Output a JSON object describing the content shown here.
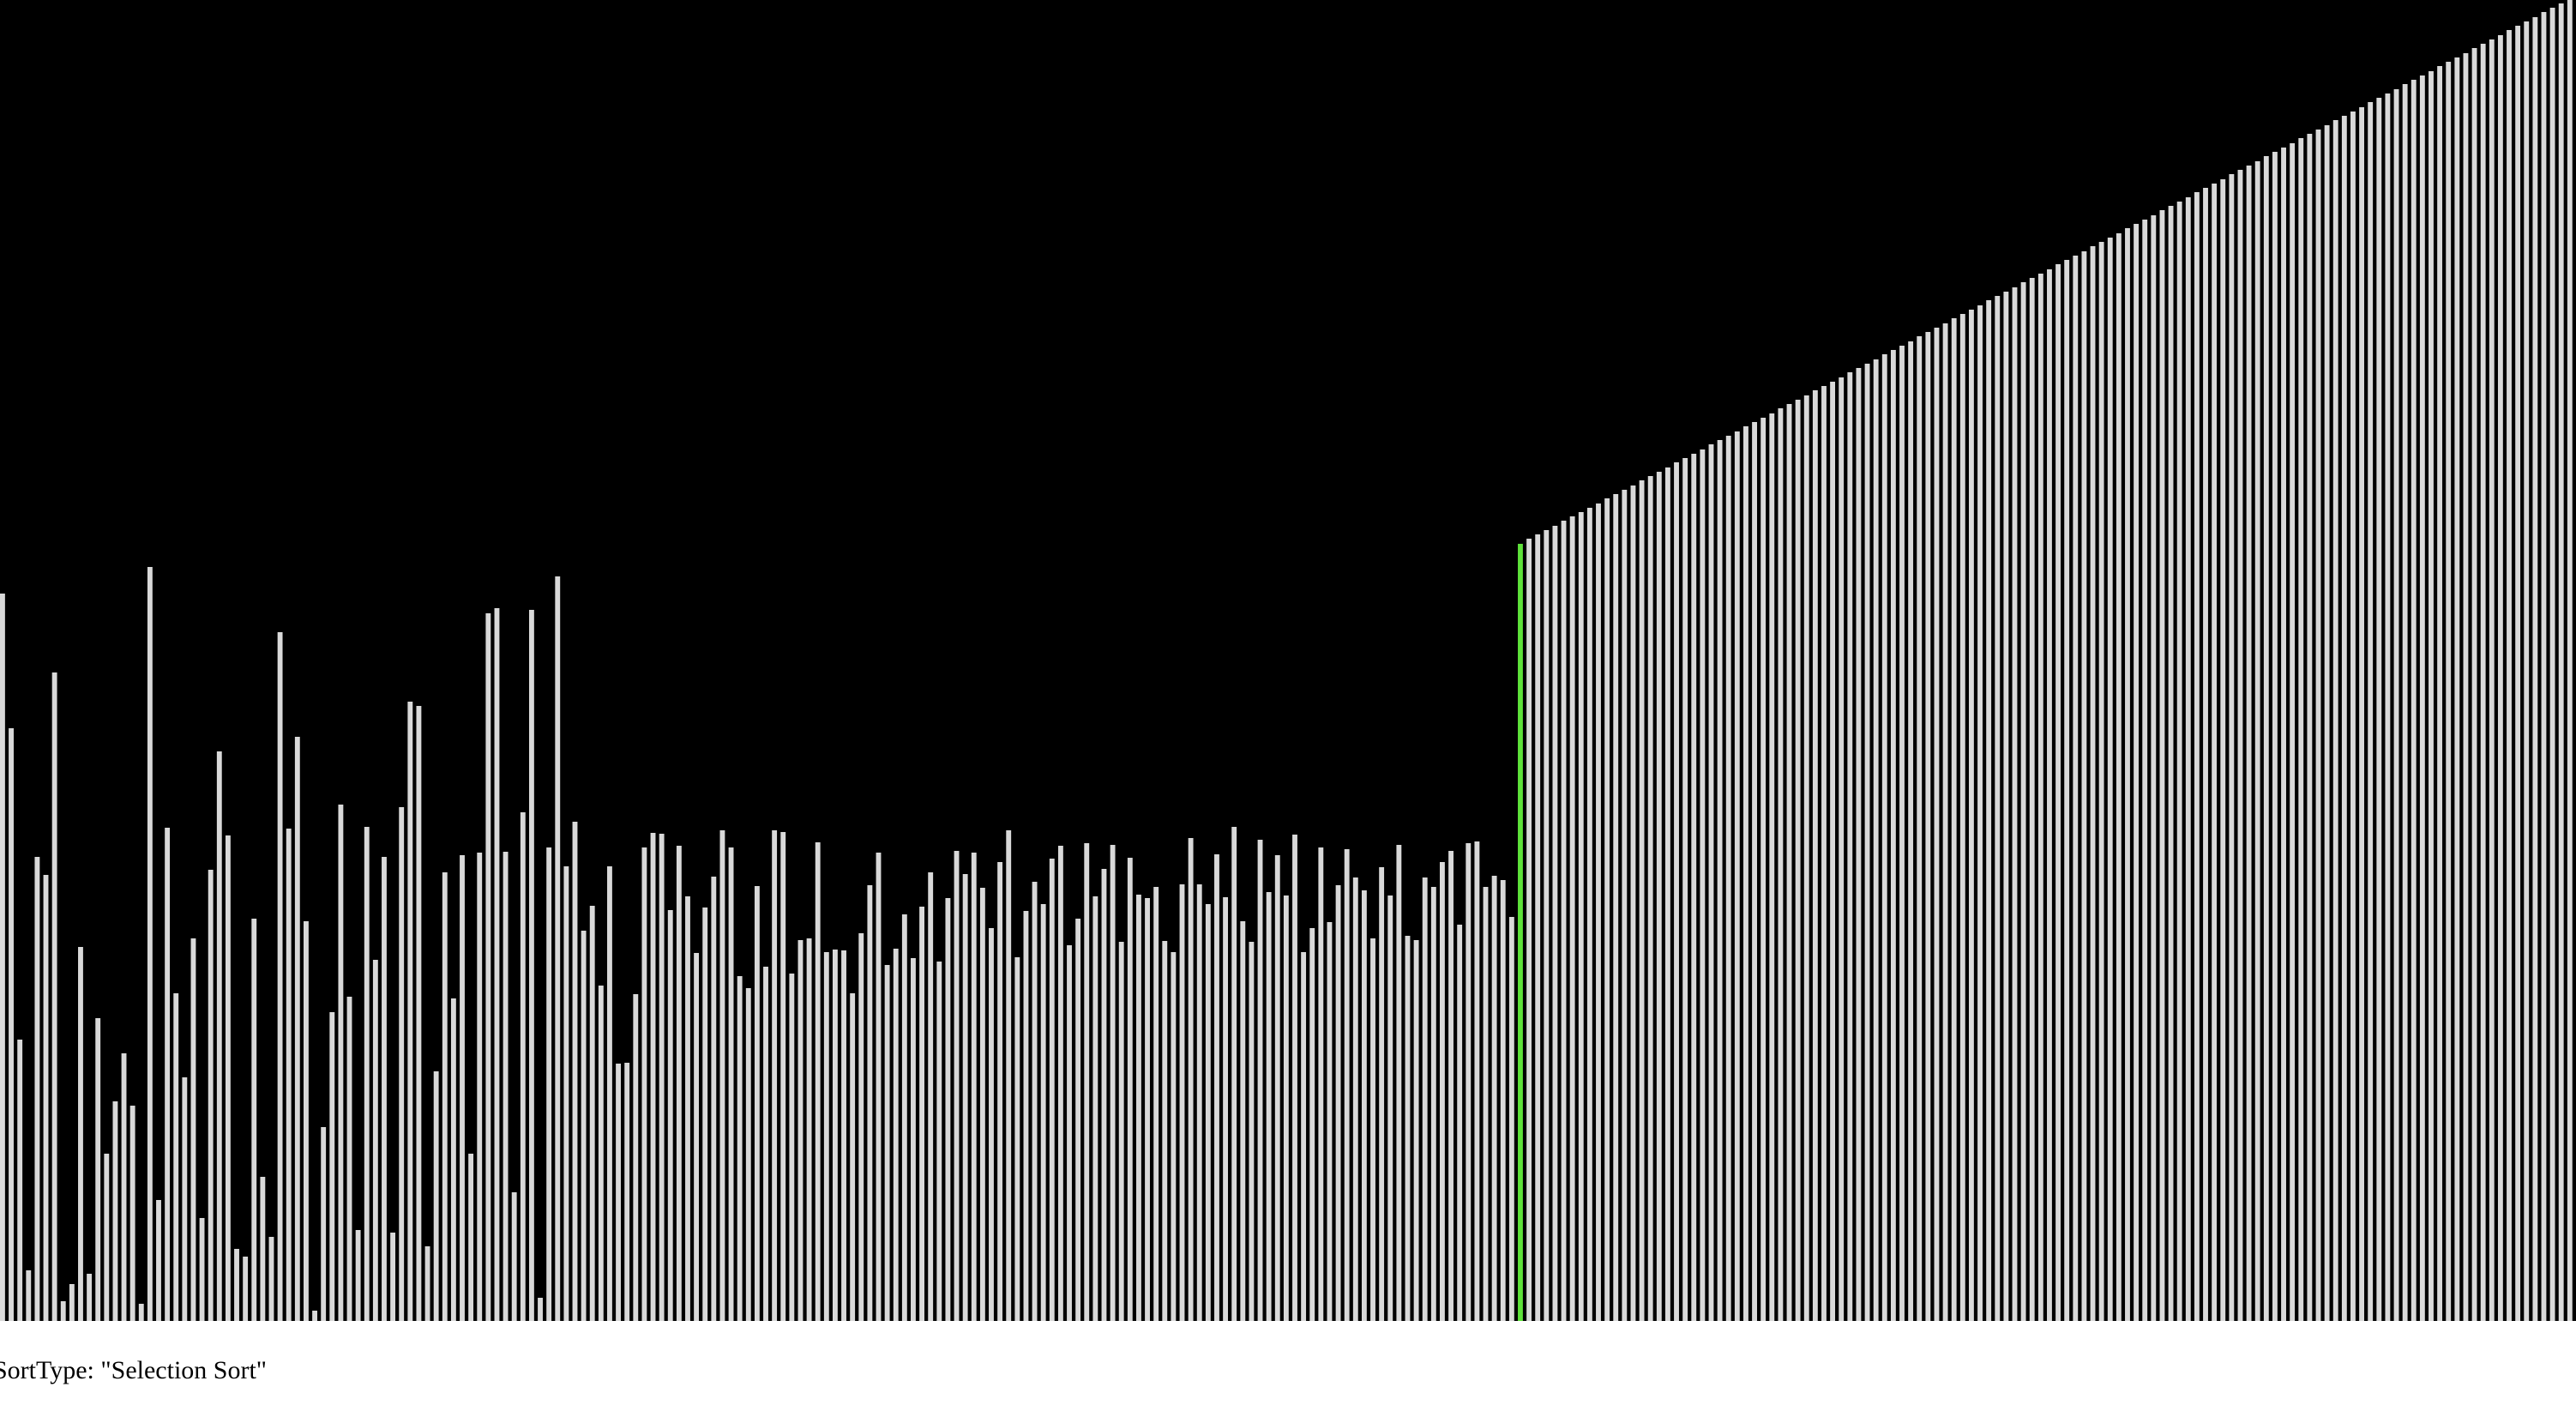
{
  "status_label": "SortType: \"Selection Sort\"",
  "sort_state": {
    "max_value": 1540,
    "highlight_index": 175,
    "values": [
      848,
      691,
      328,
      59,
      541,
      520,
      756,
      23,
      43,
      436,
      55,
      353,
      195,
      256,
      312,
      251,
      20,
      879,
      141,
      575,
      382,
      284,
      446,
      120,
      526,
      664,
      566,
      84,
      75,
      469,
      168,
      98,
      803,
      574,
      681,
      466,
      12,
      226,
      360,
      602,
      378,
      106,
      576,
      421,
      541,
      103,
      599,
      722,
      717,
      87,
      291,
      523,
      376,
      543,
      195,
      546,
      825,
      831,
      547,
      150,
      593,
      829,
      27,
      552,
      868,
      530,
      582,
      455,
      484,
      391,
      530,
      300,
      301,
      381,
      552,
      569,
      568,
      479,
      554,
      495,
      429,
      482,
      518,
      572,
      552,
      402,
      388,
      507,
      413,
      572,
      570,
      405,
      444,
      446,
      558,
      430,
      433,
      432,
      382,
      452,
      508,
      546,
      415,
      434,
      474,
      423,
      483,
      523,
      419,
      493,
      548,
      521,
      546,
      505,
      458,
      535,
      572,
      424,
      478,
      512,
      486,
      539,
      554,
      438,
      469,
      557,
      495,
      527,
      555,
      442,
      540,
      497,
      493,
      506,
      443,
      430,
      509,
      563,
      509,
      486,
      544,
      494,
      576,
      466,
      442,
      561,
      500,
      543,
      496,
      567,
      430,
      458,
      552,
      465,
      508,
      550,
      517,
      502,
      446,
      529,
      496,
      555,
      449,
      444,
      517,
      506,
      535,
      548,
      462,
      557,
      559,
      506,
      519,
      514,
      471,
      906,
      912,
      917,
      922,
      927,
      933,
      938,
      943,
      948,
      953,
      959,
      964,
      969,
      974,
      980,
      985,
      990,
      995,
      1001,
      1006,
      1011,
      1016,
      1022,
      1027,
      1032,
      1037,
      1043,
      1048,
      1053,
      1058,
      1064,
      1069,
      1074,
      1079,
      1085,
      1090,
      1095,
      1100,
      1106,
      1111,
      1116,
      1121,
      1127,
      1132,
      1137,
      1142,
      1148,
      1153,
      1158,
      1163,
      1169,
      1174,
      1179,
      1184,
      1190,
      1195,
      1200,
      1205,
      1211,
      1216,
      1221,
      1226,
      1232,
      1237,
      1242,
      1247,
      1253,
      1258,
      1263,
      1268,
      1274,
      1279,
      1284,
      1289,
      1295,
      1300,
      1305,
      1310,
      1316,
      1321,
      1326,
      1331,
      1337,
      1342,
      1347,
      1352,
      1358,
      1363,
      1368,
      1373,
      1379,
      1384,
      1389,
      1394,
      1400,
      1405,
      1410,
      1415,
      1421,
      1426,
      1431,
      1436,
      1442,
      1447,
      1452,
      1457,
      1463,
      1468,
      1473,
      1478,
      1484,
      1489,
      1494,
      1499,
      1505,
      1510,
      1515,
      1520,
      1526,
      1531,
      1536,
      1540
    ]
  },
  "colors": {
    "background": "#000000",
    "bar": "#d9d9d9",
    "highlight": "#5ee23a",
    "page": "#ffffff",
    "text": "#000000"
  }
}
